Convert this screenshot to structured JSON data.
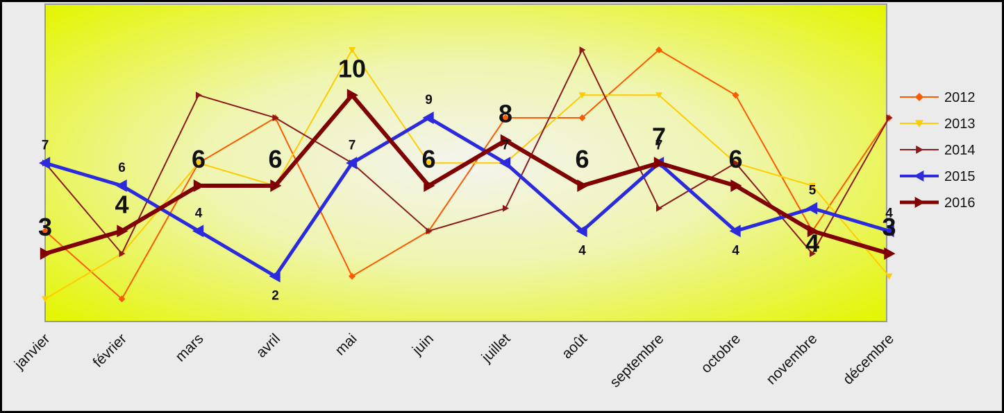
{
  "chart_data": {
    "type": "line",
    "categories": [
      "janvier",
      "février",
      "mars",
      "avril",
      "mai",
      "juin",
      "juillet",
      "août",
      "septembre",
      "octobre",
      "novembre",
      "décembre"
    ],
    "ylim": [
      0,
      12
    ],
    "grid": false,
    "legend_position": "right",
    "series": [
      {
        "name": "2012",
        "color": "#FF5A00",
        "marker": "diamond",
        "width": 2,
        "values": [
          4,
          1,
          7,
          9,
          2,
          4,
          9,
          9,
          12,
          10,
          4,
          9
        ]
      },
      {
        "name": "2013",
        "color": "#FFCC00",
        "marker": "triangle-down",
        "width": 2,
        "values": [
          1,
          3,
          7,
          6,
          12,
          7,
          7,
          10,
          10,
          7,
          6,
          2
        ]
      },
      {
        "name": "2014",
        "color": "#8B1A1A",
        "marker": "triangle-right",
        "width": 2,
        "values": [
          7,
          3,
          10,
          9,
          7,
          4,
          5,
          12,
          5,
          7,
          3,
          9
        ]
      },
      {
        "name": "2015",
        "color": "#2B2BDD",
        "marker": "triangle-left",
        "width": 5,
        "values": [
          7,
          6,
          4,
          2,
          7,
          9,
          7,
          4,
          7,
          4,
          5,
          4
        ],
        "data_labels": [
          "7",
          "6",
          "4",
          "2",
          "7",
          "9",
          "7",
          "4",
          "7",
          "4",
          "5",
          "4"
        ]
      },
      {
        "name": "2016",
        "color": "#800000",
        "marker": "triangle-right",
        "width": 6,
        "values": [
          3,
          4,
          6,
          6,
          10,
          6,
          8,
          6,
          7,
          6,
          4,
          3
        ],
        "data_labels": [
          "3",
          "4",
          "6",
          "6",
          "10",
          "6",
          "8",
          "6",
          "7",
          "6",
          "4",
          "3"
        ]
      }
    ]
  }
}
